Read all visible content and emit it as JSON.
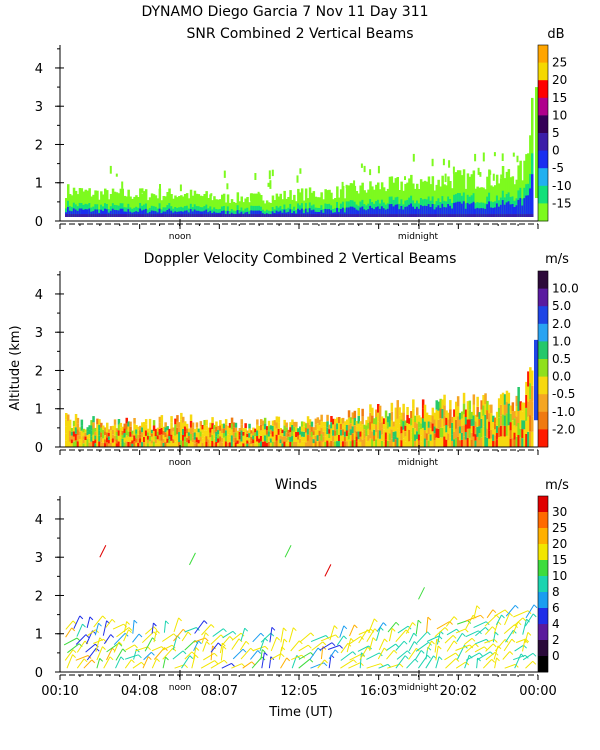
{
  "header": {
    "line1": "DYNAMO Diego Garcia   7 Nov 11 Day 311"
  },
  "shared": {
    "ylabel": "Altitude (km)",
    "xlabel": "Time (UT)",
    "ylim": [
      0,
      4.6
    ],
    "yticks": [
      "0",
      "1",
      "2",
      "3",
      "4"
    ],
    "xtick_labels": [
      "00:10",
      "04:08",
      "08:07",
      "12:05",
      "16:03",
      "20:02",
      "00:00"
    ],
    "markers": [
      "noon",
      "midnight"
    ]
  },
  "chart_data": [
    {
      "type": "heatmap",
      "title": "SNR Combined 2 Vertical Beams",
      "colorbar": {
        "unit": "dB",
        "labels": [
          "25",
          "20",
          "15",
          "10",
          "5",
          "0",
          "-5",
          "-10",
          "-15"
        ],
        "colors": [
          "#ffa500",
          "#f5d800",
          "#ff0000",
          "#b0008c",
          "#340057",
          "#3b1ea8",
          "#1a2ef0",
          "#20b0f0",
          "#12e07a",
          "#7dfa1e"
        ]
      },
      "series": [
        {
          "name": "signal layer top (km) vs hours",
          "x": [
            0,
            2,
            4,
            6,
            8,
            10,
            12,
            14,
            16,
            18,
            20,
            22,
            23.5,
            24
          ],
          "values": [
            0.8,
            0.7,
            0.7,
            0.7,
            0.6,
            0.6,
            0.7,
            0.75,
            0.9,
            1.0,
            1.1,
            1.1,
            1.3,
            3.5
          ]
        }
      ]
    },
    {
      "type": "heatmap",
      "title": "Doppler Velocity Combined 2 Vertical Beams",
      "colorbar": {
        "unit": "m/s",
        "labels": [
          "10.0",
          "5.0",
          "2.0",
          "1.0",
          "0.5",
          "0.0",
          "-0.5",
          "-1.0",
          "-2.0"
        ],
        "colors": [
          "#2d0a3a",
          "#5a1ba0",
          "#1f45e6",
          "#2aa3f2",
          "#25c86a",
          "#8fe01c",
          "#f7d90f",
          "#f5a623",
          "#f07a10",
          "#ff1a00"
        ]
      },
      "series": [
        {
          "name": "echo layer top (km) vs hours",
          "x": [
            0,
            2,
            4,
            6,
            8,
            10,
            12,
            14,
            16,
            18,
            20,
            22,
            23.5,
            24
          ],
          "values": [
            0.7,
            0.6,
            0.6,
            0.7,
            0.6,
            0.6,
            0.65,
            0.7,
            0.9,
            1.0,
            1.1,
            1.1,
            1.3,
            2.8
          ]
        }
      ]
    },
    {
      "type": "scatter",
      "title": "Winds",
      "colorbar": {
        "unit": "m/s",
        "labels": [
          "30",
          "25",
          "20",
          "15",
          "10",
          "8",
          "6",
          "4",
          "2",
          "0"
        ],
        "colors": [
          "#e00000",
          "#ff6a00",
          "#ffb000",
          "#f2e600",
          "#3ddc3d",
          "#1bd4b0",
          "#1a9df0",
          "#1f2ee8",
          "#5a1a9c",
          "#2a0a3a",
          "#000000"
        ]
      },
      "series": [
        {
          "name": "barb layer top (km) vs hours",
          "x": [
            0,
            2,
            4,
            6,
            8,
            10,
            12,
            14,
            16,
            18,
            20,
            22,
            24
          ],
          "values": [
            1.2,
            1.3,
            1.1,
            1.2,
            1.0,
            0.9,
            0.9,
            1.0,
            1.2,
            1.1,
            1.4,
            1.6,
            1.5
          ]
        }
      ]
    }
  ]
}
